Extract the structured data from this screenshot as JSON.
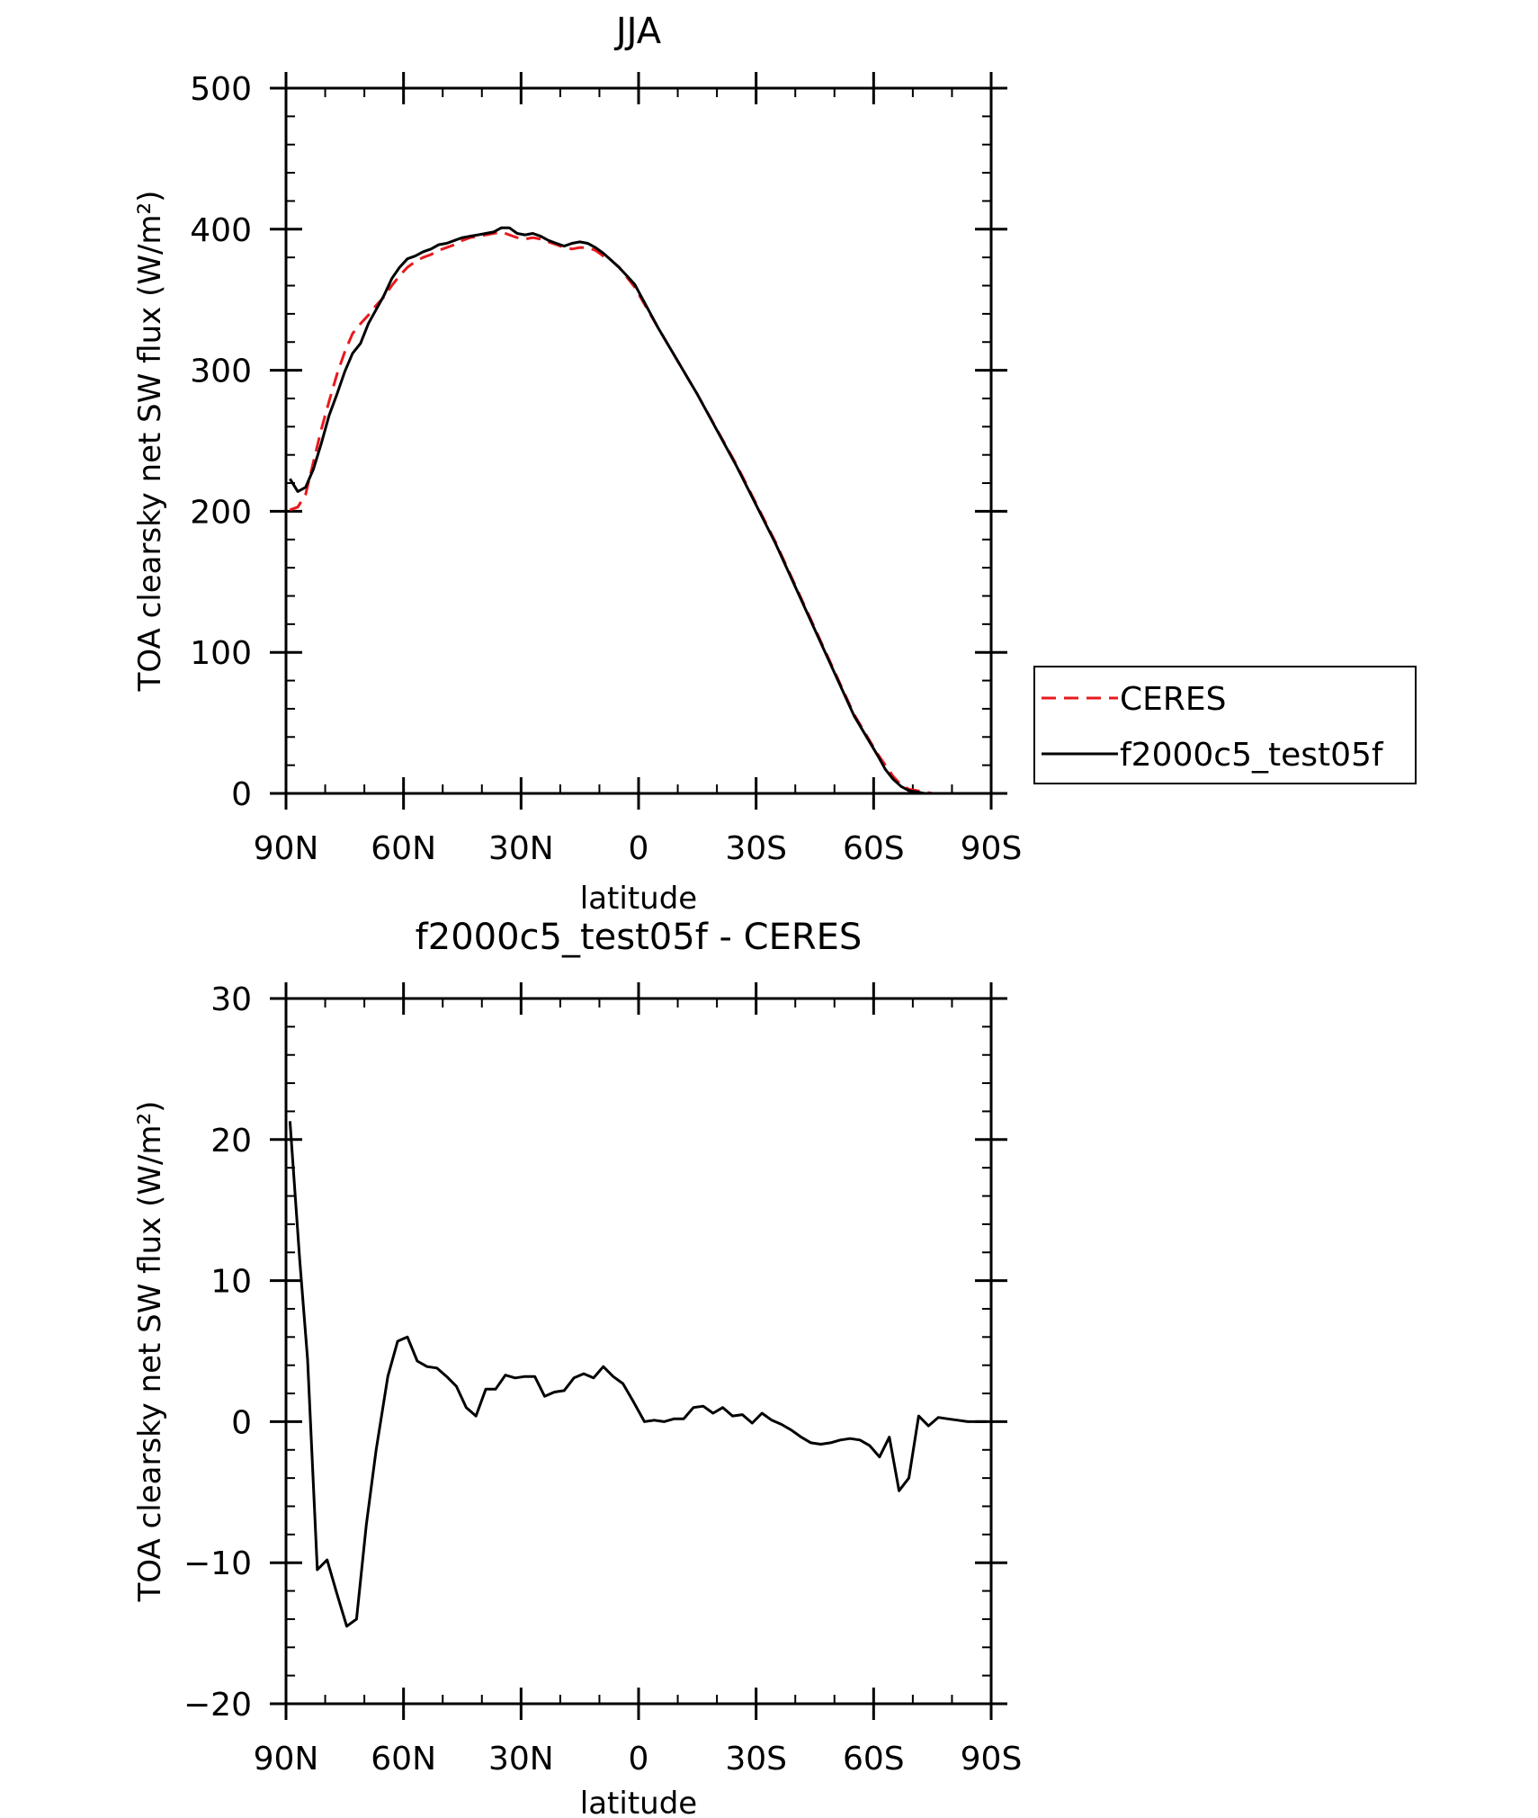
{
  "chart_data": [
    {
      "type": "line",
      "title": "JJA",
      "xlabel": "latitude",
      "ylabel": "TOA clearsky net SW flux (W/m²)",
      "xlim": [
        90,
        -90
      ],
      "ylim": [
        0,
        500
      ],
      "xticks": [
        90,
        60,
        30,
        0,
        -30,
        -60,
        -90
      ],
      "xtick_labels": [
        "90N",
        "60N",
        "30N",
        "0",
        "30S",
        "60S",
        "90S"
      ],
      "yticks": [
        0,
        100,
        200,
        300,
        400,
        500
      ],
      "ytick_labels": [
        "0",
        "100",
        "200",
        "300",
        "400",
        "500"
      ],
      "legend_position": "right",
      "series": [
        {
          "name": "CERES",
          "color": "#e8191d",
          "dash": "dashed",
          "x": [
            89,
            87,
            85,
            83,
            81,
            79,
            77,
            75,
            73,
            71,
            69,
            67,
            65,
            63,
            61,
            59,
            57,
            55,
            53,
            51,
            49,
            47,
            45,
            43,
            41,
            39,
            37,
            35,
            33,
            31,
            29,
            27,
            25,
            23,
            21,
            19,
            17,
            15,
            13,
            11,
            9,
            7,
            5,
            3,
            1,
            -5,
            -15,
            -25,
            -35,
            -45,
            -55,
            -61,
            -63,
            -65,
            -67,
            -69,
            -71,
            -73,
            -75,
            -77,
            -79,
            -81,
            -83,
            -85,
            -87,
            -89
          ],
          "y": [
            201,
            203,
            212,
            235,
            258,
            278,
            297,
            313,
            326,
            333,
            339,
            346,
            352,
            360,
            367,
            373,
            377,
            380,
            382,
            385,
            387,
            389,
            392,
            394,
            395,
            396,
            397,
            398,
            396,
            394,
            393,
            394,
            393,
            391,
            389,
            387,
            386,
            387,
            387,
            385,
            381,
            378,
            373,
            366,
            359,
            330,
            283,
            233,
            178,
            117,
            56,
            28,
            20,
            12,
            6,
            3,
            2,
            1,
            0,
            0,
            0,
            0,
            0,
            0,
            0,
            0
          ]
        },
        {
          "name": "f2000c5_test05f",
          "color": "#000000",
          "dash": "solid",
          "x": [
            89,
            87,
            85,
            83,
            81,
            79,
            77,
            75,
            73,
            71,
            69,
            67,
            65,
            63,
            61,
            59,
            57,
            55,
            53,
            51,
            49,
            47,
            45,
            43,
            41,
            39,
            37,
            35,
            33,
            31,
            29,
            27,
            25,
            23,
            21,
            19,
            17,
            15,
            13,
            11,
            9,
            7,
            5,
            3,
            1,
            -5,
            -15,
            -25,
            -35,
            -45,
            -55,
            -61,
            -63,
            -65,
            -67,
            -69,
            -71,
            -73,
            -75,
            -77,
            -79,
            -81,
            -83,
            -85,
            -87,
            -89
          ],
          "y": [
            223,
            214,
            217,
            230,
            248,
            268,
            283,
            299,
            312,
            319,
            333,
            343,
            353,
            365,
            373,
            379,
            381,
            384,
            386,
            389,
            390,
            392,
            394,
            395,
            396,
            397,
            398,
            401,
            401,
            397,
            396,
            397,
            395,
            392,
            390,
            388,
            390,
            391,
            390,
            387,
            383,
            378,
            373,
            367,
            361,
            330,
            283,
            232,
            177,
            116,
            55,
            27,
            17,
            10,
            5,
            2,
            1,
            0,
            0,
            0,
            0,
            0,
            0,
            0,
            0,
            0
          ]
        }
      ]
    },
    {
      "type": "line",
      "title": "f2000c5_test05f - CERES",
      "xlabel": "latitude",
      "ylabel": "TOA clearsky net SW flux (W/m²)",
      "xlim": [
        90,
        -90
      ],
      "ylim": [
        -20,
        30
      ],
      "xticks": [
        90,
        60,
        30,
        0,
        -30,
        -60,
        -90
      ],
      "xtick_labels": [
        "90N",
        "60N",
        "30N",
        "0",
        "30S",
        "60S",
        "90S"
      ],
      "yticks": [
        -20,
        -10,
        0,
        10,
        20,
        30
      ],
      "ytick_labels": [
        "−20",
        "−10",
        "0",
        "10",
        "20",
        "30"
      ],
      "series": [
        {
          "color": "#000000",
          "x": [
            89,
            86.5,
            84.5,
            82,
            79.5,
            77,
            74.5,
            72,
            69.5,
            67,
            64,
            61.5,
            59,
            56.5,
            54,
            51.5,
            49,
            46.5,
            44,
            41.5,
            39,
            36.5,
            34,
            31.5,
            29,
            26.5,
            24,
            21.5,
            19,
            16.5,
            14,
            11.5,
            9,
            6.5,
            4,
            1.5,
            -1.5,
            -4,
            -6.5,
            -9,
            -11.5,
            -14,
            -16.5,
            -19,
            -21.5,
            -24,
            -26.5,
            -29,
            -31.5,
            -34,
            -36.5,
            -39,
            -41.5,
            -44,
            -46.5,
            -49,
            -51.5,
            -54,
            -56.5,
            -59,
            -61.5,
            -64,
            -66.5,
            -69,
            -71.5,
            -74,
            -76.5,
            -79,
            -81.5,
            -84,
            -86.5,
            -89
          ],
          "y": [
            21.3,
            11.5,
            4.4,
            -10.5,
            -9.8,
            -12.2,
            -14.5,
            -14.0,
            -7.3,
            -2.0,
            3.2,
            5.7,
            6.0,
            4.3,
            3.9,
            3.8,
            3.2,
            2.5,
            1.0,
            0.4,
            2.3,
            2.3,
            3.3,
            3.1,
            3.2,
            3.2,
            1.8,
            2.1,
            2.2,
            3.1,
            3.4,
            3.1,
            3.9,
            3.2,
            2.7,
            1.5,
            0.0,
            0.1,
            0.0,
            0.2,
            0.2,
            1.0,
            1.1,
            0.6,
            1.0,
            0.4,
            0.5,
            -0.1,
            0.6,
            0.1,
            -0.2,
            -0.6,
            -1.1,
            -1.5,
            -1.6,
            -1.5,
            -1.3,
            -1.2,
            -1.3,
            -1.7,
            -2.5,
            -1.1,
            -4.9,
            -4.0,
            0.4,
            -0.3,
            0.3,
            0.2,
            0.1,
            0.0,
            0.0,
            0.0
          ]
        }
      ]
    }
  ]
}
